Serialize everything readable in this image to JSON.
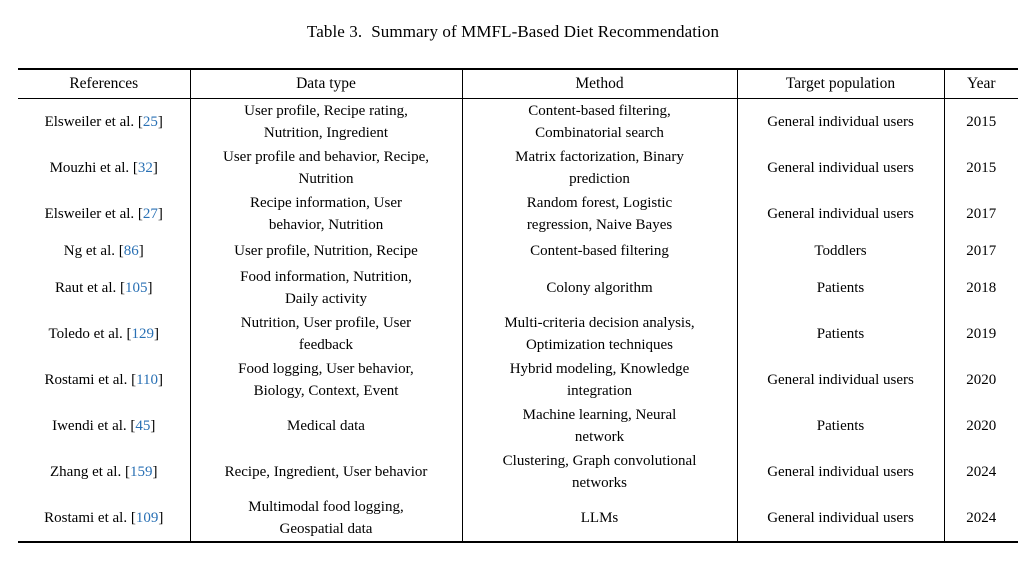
{
  "caption": {
    "label": "Table 3.",
    "title": "Summary of MMFL-Based Diet Recommendation"
  },
  "accent_color": "#2970b4",
  "table": {
    "columns": [
      "References",
      "Data type",
      "Method",
      "Target population",
      "Year"
    ],
    "rows": [
      {
        "author": "Elsweiler et al.",
        "ref_num": "25",
        "data_type": "User profile, Recipe rating,\nNutrition, Ingredient",
        "method": "Content-based filtering,\nCombinatorial search",
        "target": "General individual users",
        "year": "2015"
      },
      {
        "author": "Mouzhi et al.",
        "ref_num": "32",
        "data_type": "User profile and behavior, Recipe,\nNutrition",
        "method": "Matrix factorization, Binary\nprediction",
        "target": "General individual users",
        "year": "2015"
      },
      {
        "author": "Elsweiler et al.",
        "ref_num": "27",
        "data_type": "Recipe information, User\nbehavior, Nutrition",
        "method": "Random forest, Logistic\nregression, Naive Bayes",
        "target": "General individual users",
        "year": "2017"
      },
      {
        "author": "Ng et al.",
        "ref_num": "86",
        "data_type": "User profile, Nutrition, Recipe",
        "method": "Content-based filtering",
        "target": "Toddlers",
        "year": "2017"
      },
      {
        "author": "Raut et al.",
        "ref_num": "105",
        "data_type": "Food information, Nutrition,\nDaily activity",
        "method": "Colony algorithm",
        "target": "Patients",
        "year": "2018"
      },
      {
        "author": "Toledo et al.",
        "ref_num": "129",
        "data_type": "Nutrition, User profile, User\nfeedback",
        "method": "Multi-criteria decision analysis,\nOptimization techniques",
        "target": "Patients",
        "year": "2019"
      },
      {
        "author": "Rostami et al.",
        "ref_num": "110",
        "data_type": "Food logging, User behavior,\nBiology, Context, Event",
        "method": "Hybrid modeling, Knowledge\nintegration",
        "target": "General individual users",
        "year": "2020"
      },
      {
        "author": "Iwendi et al.",
        "ref_num": "45",
        "data_type": "Medical data",
        "method": "Machine learning, Neural\nnetwork",
        "target": "Patients",
        "year": "2020"
      },
      {
        "author": "Zhang et al.",
        "ref_num": "159",
        "data_type": "Recipe, Ingredient, User behavior",
        "method": "Clustering, Graph convolutional\nnetworks",
        "target": "General individual users",
        "year": "2024"
      },
      {
        "author": "Rostami et al.",
        "ref_num": "109",
        "data_type": "Multimodal food logging,\nGeospatial data",
        "method": "LLMs",
        "target": "General individual users",
        "year": "2024"
      }
    ]
  }
}
